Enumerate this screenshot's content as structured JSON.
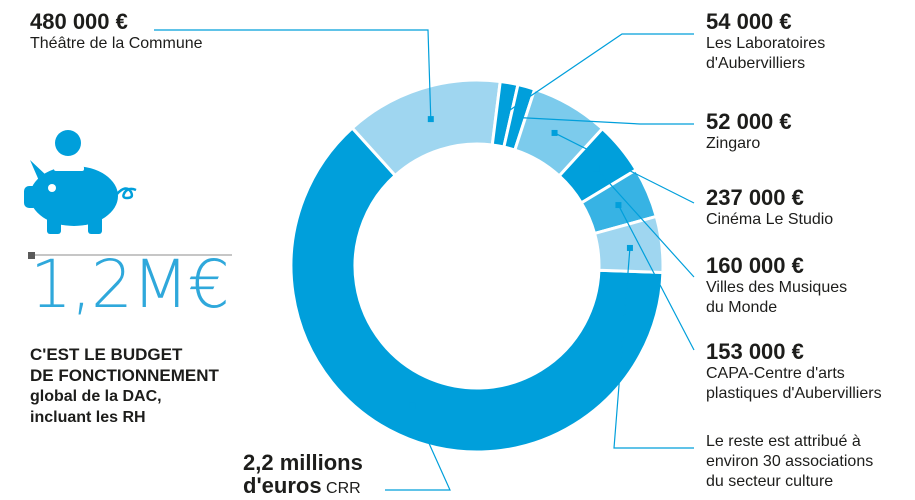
{
  "colors": {
    "dark": "#009fdb",
    "light": "#9fd6f0",
    "mid": "#7ccbec",
    "accent": "#009fdb",
    "big_text": "#2fa8db",
    "text": "#1d1d1b",
    "gray": "#8c8c8c"
  },
  "headline": {
    "value": "1,2M€",
    "line1": "C'EST LE BUDGET",
    "line2": "DE FONCTIONNEMENT",
    "line3": "global de la DAC,",
    "line4": "incluant les RH"
  },
  "icon": "piggy-bank-icon",
  "crr": {
    "amount_line1": "2,2 millions",
    "amount_line2": "d'euros",
    "name": "CRR"
  },
  "annotations": {
    "theatre": {
      "amount": "480 000 €",
      "name": "Théâtre de la Commune"
    },
    "labos": {
      "amount": "54 000 €",
      "name_line1": "Les Laboratoires",
      "name_line2": "d'Aubervilliers"
    },
    "zingaro": {
      "amount": "52 000 €",
      "name": "Zingaro"
    },
    "studio": {
      "amount": "237 000 €",
      "name": "Cinéma Le Studio"
    },
    "musiques": {
      "amount": "160 000 €",
      "name_line1": "Villes des Musiques",
      "name_line2": "du Monde"
    },
    "capa": {
      "amount": "153 000 €",
      "name_line1": "CAPA-Centre d'arts",
      "name_line2": "plastiques d'Aubervilliers"
    },
    "reste": {
      "line1": "Le reste est attribué à",
      "line2": "environ 30 associations",
      "line3": "du secteur culture"
    }
  },
  "chart_data": {
    "type": "pie",
    "variant": "donut",
    "slices": [
      {
        "label": "CRR",
        "value": 2200000,
        "color": "#009fdb"
      },
      {
        "label": "Théâtre de la Commune",
        "value": 480000,
        "color": "#9fd6f0"
      },
      {
        "label": "Les Laboratoires d'Aubervilliers",
        "value": 54000,
        "color": "#009fdb"
      },
      {
        "label": "Zingaro",
        "value": 52000,
        "color": "#009fdb"
      },
      {
        "label": "Cinéma Le Studio",
        "value": 237000,
        "color": "#7ccbec"
      },
      {
        "label": "Villes des Musiques du Monde",
        "value": 160000,
        "color": "#009fdb"
      },
      {
        "label": "CAPA-Centre d'arts plastiques d'Aubervilliers",
        "value": 153000,
        "color": "#37b3e4"
      },
      {
        "label": "Le reste est attribué à environ 30 associations du secteur culture",
        "value": 170000,
        "color": "#9fd6f0"
      }
    ]
  }
}
